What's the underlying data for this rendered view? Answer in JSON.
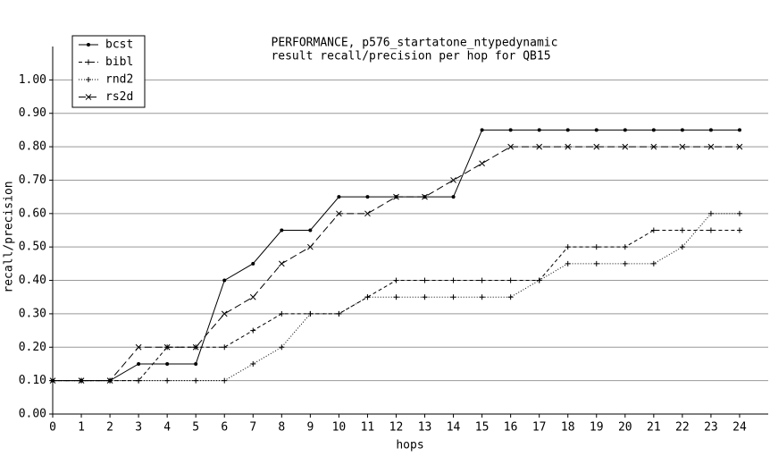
{
  "chart_data": {
    "type": "line",
    "title": "PERFORMANCE, p576_startatone_ntypedynamic",
    "subtitle": "result recall/precision per hop for QB15",
    "xlabel": "hops",
    "ylabel": "recall/precision",
    "x": [
      0,
      1,
      2,
      3,
      4,
      5,
      6,
      7,
      8,
      9,
      10,
      11,
      12,
      13,
      14,
      15,
      16,
      17,
      18,
      19,
      20,
      21,
      22,
      23,
      24
    ],
    "xlim": [
      0,
      25
    ],
    "xticks": [
      0,
      1,
      2,
      3,
      4,
      5,
      6,
      7,
      8,
      9,
      10,
      11,
      12,
      13,
      14,
      15,
      16,
      17,
      18,
      19,
      20,
      21,
      22,
      23,
      24
    ],
    "ylim": [
      0,
      1.1
    ],
    "yticks": [
      {
        "value": 0,
        "label": "0.00"
      },
      {
        "value": 0.1,
        "label": "0.10"
      },
      {
        "value": 0.2,
        "label": "0.20"
      },
      {
        "value": 0.3,
        "label": "0.30"
      },
      {
        "value": 0.4,
        "label": "0.40"
      },
      {
        "value": 0.5,
        "label": "0.50"
      },
      {
        "value": 0.6,
        "label": "0.60"
      },
      {
        "value": 0.7,
        "label": "0.70"
      },
      {
        "value": 0.8,
        "label": "0.80"
      },
      {
        "value": 0.9,
        "label": "0.90"
      },
      {
        "value": 1,
        "label": "1.00"
      }
    ],
    "grid": true,
    "grid_color": "#999999",
    "legend": "upper left",
    "series": [
      {
        "name": "bcst",
        "color": "#000000",
        "dash": "none",
        "marker": "dot",
        "values": [
          0.1,
          0.1,
          0.1,
          0.15,
          0.15,
          0.15,
          0.4,
          0.45,
          0.55,
          0.55,
          0.65,
          0.65,
          0.65,
          0.65,
          0.65,
          0.85,
          0.85,
          0.85,
          0.85,
          0.85,
          0.85,
          0.85,
          0.85,
          0.85,
          0.85
        ]
      },
      {
        "name": "bibl",
        "color": "#000000",
        "dash": "4 3",
        "marker": "plus",
        "values": [
          0.1,
          0.1,
          0.1,
          0.1,
          0.2,
          0.2,
          0.2,
          0.25,
          0.3,
          0.3,
          0.3,
          0.35,
          0.4,
          0.4,
          0.4,
          0.4,
          0.4,
          0.4,
          0.5,
          0.5,
          0.5,
          0.55,
          0.55,
          0.55,
          0.55
        ]
      },
      {
        "name": "rnd2",
        "color": "#000000",
        "dash": "1 2",
        "marker": "plus",
        "values": [
          0.1,
          0.1,
          0.1,
          0.1,
          0.1,
          0.1,
          0.1,
          0.15,
          0.2,
          0.3,
          0.3,
          0.35,
          0.35,
          0.35,
          0.35,
          0.35,
          0.35,
          0.4,
          0.45,
          0.45,
          0.45,
          0.45,
          0.5,
          0.6,
          0.6
        ]
      },
      {
        "name": "rs2d",
        "color": "#000000",
        "dash": "8 4",
        "marker": "cross",
        "values": [
          0.1,
          0.1,
          0.1,
          0.2,
          0.2,
          0.2,
          0.3,
          0.35,
          0.45,
          0.5,
          0.6,
          0.6,
          0.65,
          0.65,
          0.7,
          0.75,
          0.8,
          0.8,
          0.8,
          0.8,
          0.8,
          0.8,
          0.8,
          0.8,
          0.8
        ]
      }
    ]
  }
}
